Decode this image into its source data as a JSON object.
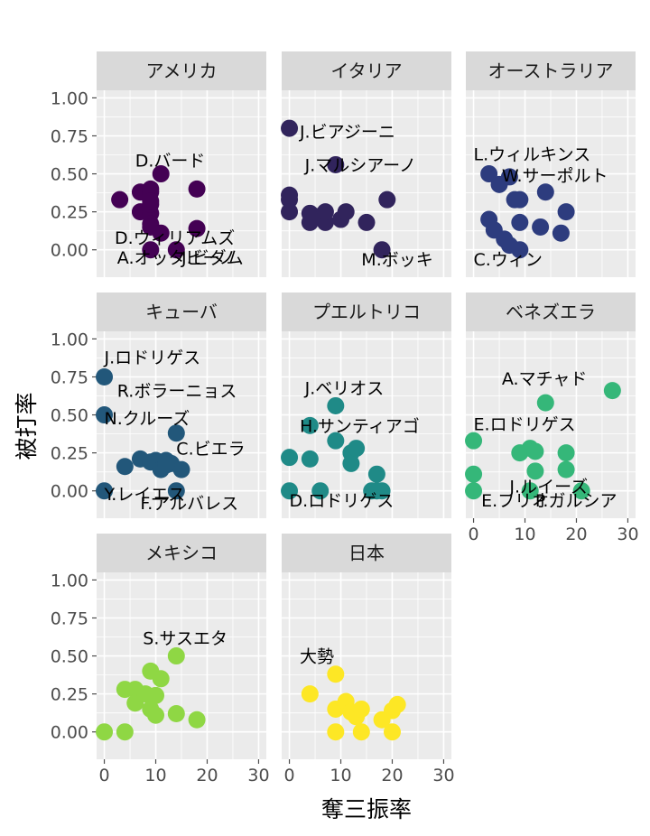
{
  "chart_data": {
    "type": "scatter",
    "xlabel": "奪三振率",
    "ylabel": "被打率",
    "xlim": [
      -1.5,
      31.5
    ],
    "ylim": [
      -0.18,
      1.05
    ],
    "xticks": [
      "0",
      "10",
      "20",
      "30"
    ],
    "yticks": [
      "0.00",
      "0.25",
      "0.50",
      "0.75",
      "1.00"
    ],
    "grid": true,
    "panels": [
      {
        "name": "アメリカ",
        "color": "#440154",
        "points": [
          {
            "x": 3,
            "y": 0.33
          },
          {
            "x": 7,
            "y": 0.38
          },
          {
            "x": 9,
            "y": 0.38
          },
          {
            "x": 9,
            "y": 0.4
          },
          {
            "x": 11,
            "y": 0.5
          },
          {
            "x": 7,
            "y": 0.25
          },
          {
            "x": 9,
            "y": 0.24
          },
          {
            "x": 9,
            "y": 0.3
          },
          {
            "x": 9,
            "y": 0.17
          },
          {
            "x": 9,
            "y": 0.15
          },
          {
            "x": 11,
            "y": 0.11
          },
          {
            "x": 18,
            "y": 0.4
          },
          {
            "x": 18,
            "y": 0.14
          },
          {
            "x": 9,
            "y": 0.0
          },
          {
            "x": 14,
            "y": 0.0
          },
          {
            "x": 9,
            "y": 0.32
          }
        ],
        "labels": [
          {
            "text": "D.バード",
            "x": 6,
            "y": 0.59
          },
          {
            "text": "D.ウィリアムズ",
            "x": 2,
            "y": 0.08
          },
          {
            "text": "A.オッタビーノ",
            "x": 2.5,
            "y": -0.05
          },
          {
            "text": "J.ビダム",
            "x": 15,
            "y": -0.05
          }
        ]
      },
      {
        "name": "イタリア",
        "color": "#31245c",
        "points": [
          {
            "x": 0,
            "y": 0.8
          },
          {
            "x": 0,
            "y": 0.36
          },
          {
            "x": 0,
            "y": 0.33
          },
          {
            "x": 0,
            "y": 0.25
          },
          {
            "x": 4,
            "y": 0.18
          },
          {
            "x": 4,
            "y": 0.24
          },
          {
            "x": 5,
            "y": 0.22
          },
          {
            "x": 7,
            "y": 0.18
          },
          {
            "x": 7,
            "y": 0.25
          },
          {
            "x": 10,
            "y": 0.2
          },
          {
            "x": 11,
            "y": 0.25
          },
          {
            "x": 15,
            "y": 0.18
          },
          {
            "x": 19,
            "y": 0.33
          },
          {
            "x": 18,
            "y": 0.0
          },
          {
            "x": 9,
            "y": 0.56
          }
        ],
        "labels": [
          {
            "text": "J.ビアジーニ",
            "x": 2,
            "y": 0.78
          },
          {
            "text": "J.マルシアーノ",
            "x": 3,
            "y": 0.56
          },
          {
            "text": "M.ボッキ",
            "x": 14,
            "y": -0.06
          }
        ]
      },
      {
        "name": "オーストラリア",
        "color": "#2d3c7e",
        "points": [
          {
            "x": 3,
            "y": 0.5
          },
          {
            "x": 5,
            "y": 0.43
          },
          {
            "x": 7,
            "y": 0.48
          },
          {
            "x": 8,
            "y": 0.33
          },
          {
            "x": 9,
            "y": 0.33
          },
          {
            "x": 14,
            "y": 0.38
          },
          {
            "x": 3,
            "y": 0.2
          },
          {
            "x": 4,
            "y": 0.13
          },
          {
            "x": 6,
            "y": 0.07
          },
          {
            "x": 7,
            "y": 0.03
          },
          {
            "x": 9,
            "y": 0.18
          },
          {
            "x": 13,
            "y": 0.15
          },
          {
            "x": 9,
            "y": 0.0
          },
          {
            "x": 18,
            "y": 0.25
          },
          {
            "x": 17,
            "y": 0.11
          }
        ],
        "labels": [
          {
            "text": "L.ウィルキンス",
            "x": 0,
            "y": 0.63
          },
          {
            "text": "W.サーポルト",
            "x": 5.5,
            "y": 0.49
          },
          {
            "text": "C.ウィン",
            "x": 0,
            "y": -0.06
          }
        ]
      },
      {
        "name": "キューバ",
        "color": "#22577a",
        "points": [
          {
            "x": 0,
            "y": 0.75
          },
          {
            "x": 0,
            "y": 0.5
          },
          {
            "x": 0,
            "y": 0.0
          },
          {
            "x": 4,
            "y": 0.16
          },
          {
            "x": 7,
            "y": 0.21
          },
          {
            "x": 9,
            "y": 0.19
          },
          {
            "x": 10,
            "y": 0.2
          },
          {
            "x": 11,
            "y": 0.14
          },
          {
            "x": 12,
            "y": 0.2
          },
          {
            "x": 13,
            "y": 0.18
          },
          {
            "x": 15,
            "y": 0.14
          },
          {
            "x": 14,
            "y": 0.38
          },
          {
            "x": 14,
            "y": 0.0
          },
          {
            "x": 12,
            "y": 0.17
          }
        ],
        "labels": [
          {
            "text": "J.ロドリゲス",
            "x": 0,
            "y": 0.88
          },
          {
            "text": "R.ボラーニョス",
            "x": 2.5,
            "y": 0.66
          },
          {
            "text": "N.クルーズ",
            "x": 0,
            "y": 0.48
          },
          {
            "text": "C.ビエラ",
            "x": 14,
            "y": 0.28
          },
          {
            "text": "Y.レイエス",
            "x": 0,
            "y": -0.02
          },
          {
            "text": "F.アルバレス",
            "x": 7,
            "y": -0.08
          }
        ]
      },
      {
        "name": "プエルトリコ",
        "color": "#1f8a87",
        "points": [
          {
            "x": 0,
            "y": 0.22
          },
          {
            "x": 4,
            "y": 0.21
          },
          {
            "x": 9,
            "y": 0.56
          },
          {
            "x": 4,
            "y": 0.43
          },
          {
            "x": 9,
            "y": 0.33
          },
          {
            "x": 12,
            "y": 0.25
          },
          {
            "x": 12,
            "y": 0.18
          },
          {
            "x": 13,
            "y": 0.28
          },
          {
            "x": 17,
            "y": 0.11
          },
          {
            "x": 0,
            "y": 0.0
          },
          {
            "x": 6,
            "y": 0.0
          },
          {
            "x": 16,
            "y": 0.0
          },
          {
            "x": 17,
            "y": 0.0
          },
          {
            "x": 18,
            "y": 0.0
          }
        ],
        "labels": [
          {
            "text": "J.ベリオス",
            "x": 3,
            "y": 0.68
          },
          {
            "text": "H.サンティアゴ",
            "x": 2,
            "y": 0.43
          },
          {
            "text": "D.ロドリゲス",
            "x": 0,
            "y": -0.06
          }
        ]
      },
      {
        "name": "ベネズエラ",
        "color": "#35b779",
        "points": [
          {
            "x": 27,
            "y": 0.66
          },
          {
            "x": 14,
            "y": 0.58
          },
          {
            "x": 0,
            "y": 0.33
          },
          {
            "x": 9,
            "y": 0.25
          },
          {
            "x": 11,
            "y": 0.28
          },
          {
            "x": 12,
            "y": 0.26
          },
          {
            "x": 18,
            "y": 0.25
          },
          {
            "x": 18,
            "y": 0.14
          },
          {
            "x": 12,
            "y": 0.13
          },
          {
            "x": 0,
            "y": 0.11
          },
          {
            "x": 0,
            "y": 0.0
          },
          {
            "x": 11,
            "y": 0.0
          },
          {
            "x": 21,
            "y": 0.0
          }
        ],
        "labels": [
          {
            "text": "A.マチャド",
            "x": 5.5,
            "y": 0.74
          },
          {
            "text": "E.ロドリゲス",
            "x": 0,
            "y": 0.44
          },
          {
            "text": "J.ルイーズ",
            "x": 7,
            "y": 0.03
          },
          {
            "text": "E.フリオ",
            "x": 1.5,
            "y": -0.06
          },
          {
            "text": "P.ガルシア",
            "x": 12,
            "y": -0.06
          }
        ]
      },
      {
        "name": "メキシコ",
        "color": "#8fd744",
        "points": [
          {
            "x": 0,
            "y": 0.0
          },
          {
            "x": 4,
            "y": 0.0
          },
          {
            "x": 4,
            "y": 0.28
          },
          {
            "x": 6,
            "y": 0.28
          },
          {
            "x": 6,
            "y": 0.19
          },
          {
            "x": 8,
            "y": 0.25
          },
          {
            "x": 9,
            "y": 0.15
          },
          {
            "x": 9,
            "y": 0.4
          },
          {
            "x": 10,
            "y": 0.11
          },
          {
            "x": 10,
            "y": 0.24
          },
          {
            "x": 11,
            "y": 0.35
          },
          {
            "x": 14,
            "y": 0.5
          },
          {
            "x": 14,
            "y": 0.12
          },
          {
            "x": 18,
            "y": 0.08
          }
        ],
        "labels": [
          {
            "text": "S.サスエタ",
            "x": 7.5,
            "y": 0.62
          }
        ]
      },
      {
        "name": "日本",
        "color": "#fde725",
        "points": [
          {
            "x": 4,
            "y": 0.25
          },
          {
            "x": 9,
            "y": 0.38
          },
          {
            "x": 9,
            "y": 0.15
          },
          {
            "x": 9,
            "y": 0.0
          },
          {
            "x": 11,
            "y": 0.17
          },
          {
            "x": 11,
            "y": 0.2
          },
          {
            "x": 12,
            "y": 0.13
          },
          {
            "x": 13,
            "y": 0.1
          },
          {
            "x": 14,
            "y": 0.15
          },
          {
            "x": 14,
            "y": 0.0
          },
          {
            "x": 18,
            "y": 0.08
          },
          {
            "x": 20,
            "y": 0.14
          },
          {
            "x": 21,
            "y": 0.18
          },
          {
            "x": 20,
            "y": 0.0
          }
        ],
        "labels": [
          {
            "text": "大勢",
            "x": 2,
            "y": 0.5
          }
        ]
      }
    ]
  }
}
